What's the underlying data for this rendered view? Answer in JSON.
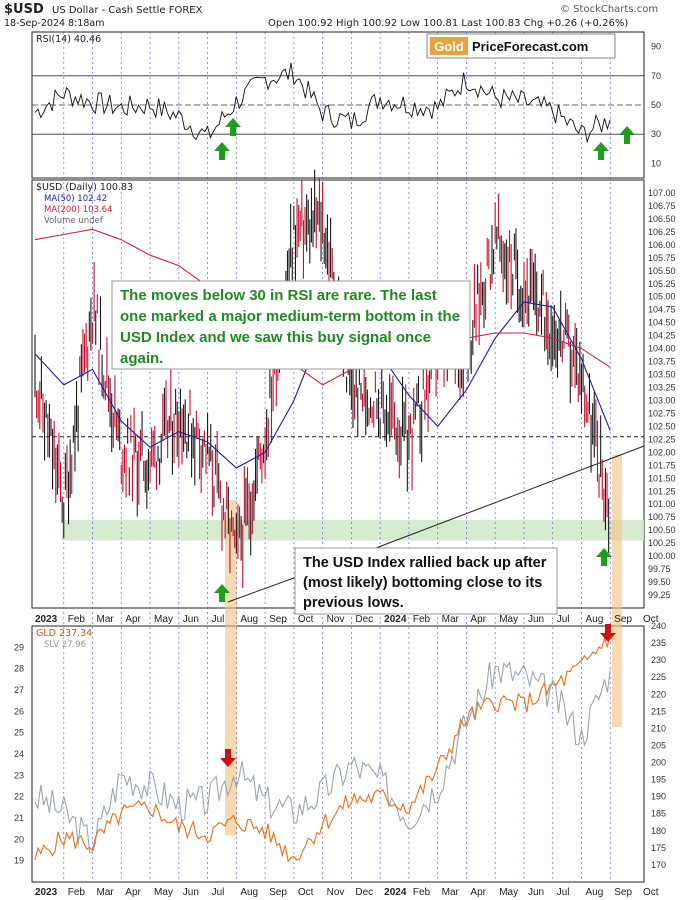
{
  "header": {
    "title": "$USD",
    "subtitle": "US Dollar - Cash Settle  FOREX",
    "date": "18-Sep-2024 8:18am",
    "ohlc": "Open 100.92  High 100.92  Low 100.81  Last 100.83  Chg +0.26 (+0.26%)",
    "credit": "© StockCharts.com"
  },
  "logo": {
    "gold": "Gold",
    "rest": "PriceForecast.com"
  },
  "colors": {
    "price_bar": "#1a1a1a",
    "price_down": "#c8102e",
    "ma50": "#1f1fa0",
    "ma200": "#cc2244",
    "gld": "#e8701a",
    "slv": "#9aa6b2",
    "support_zone": "#cfe6c8",
    "highlight": "#f4c27f",
    "grid_dash": "#3a3aff",
    "arrow_up": "#1e9e1e",
    "arrow_down": "#cc1111",
    "annotation_green": "#1e8c1e"
  },
  "annotations": {
    "rsi_note": "The moves below 30 in RSI are rare. The last one marked a major medium-term bottom in the USD Index and we saw this buy signal once again.",
    "usd_note": "The USD Index rallied back up after (most likely) bottoming close to its previous lows."
  },
  "chart_data": [
    {
      "type": "line",
      "panel": "RSI",
      "legend": "RSI(14) 40.46",
      "ylim": [
        0,
        100
      ],
      "y_ticks": [
        10,
        30,
        50,
        70,
        90
      ],
      "reference_lines": [
        30,
        50,
        70
      ],
      "x_ticks": [
        "2023",
        "Feb",
        "Mar",
        "Apr",
        "May",
        "Jun",
        "Jul",
        "Aug",
        "Sep",
        "Oct",
        "Nov",
        "Dec",
        "2024",
        "Feb",
        "Mar",
        "Apr",
        "May",
        "Jun",
        "Jul",
        "Aug",
        "Sep",
        "Oct"
      ],
      "x": [
        "2023-01",
        "2023-02",
        "2023-03",
        "2023-04",
        "2023-05",
        "2023-06",
        "2023-07",
        "2023-08",
        "2023-09",
        "2023-10",
        "2023-11",
        "2023-12",
        "2024-01",
        "2024-02",
        "2024-03",
        "2024-04",
        "2024-05",
        "2024-06",
        "2024-07",
        "2024-08",
        "2024-09"
      ],
      "series": [
        {
          "name": "RSI(14) 40.46",
          "values": [
            45,
            58,
            52,
            48,
            50,
            42,
            28,
            52,
            68,
            72,
            45,
            38,
            55,
            50,
            48,
            68,
            55,
            52,
            46,
            30,
            40
          ]
        }
      ]
    },
    {
      "type": "line",
      "panel": "USD",
      "legend": [
        "$USD (Daily) 100.83",
        "MA(50) 102.42",
        "MA(200) 103.64",
        "Volume undef"
      ],
      "ylim": [
        99.0,
        107.25
      ],
      "y_ticks": [
        "107.00",
        "106.75",
        "106.50",
        "106.25",
        "106.00",
        "105.75",
        "105.50",
        "105.25",
        "105.00",
        "104.75",
        "104.50",
        "104.25",
        "104.00",
        "103.75",
        "103.50",
        "103.25",
        "103.00",
        "102.75",
        "102.50",
        "102.25",
        "102.00",
        "101.75",
        "101.50",
        "101.25",
        "101.00",
        "100.75",
        "100.50",
        "100.25",
        "100.00",
        "99.75",
        "99.50",
        "99.25"
      ],
      "x_ticks": [
        "2023",
        "Feb",
        "Mar",
        "Apr",
        "May",
        "Jun",
        "Jul",
        "Aug",
        "Sep",
        "Oct",
        "Nov",
        "Dec",
        "2024",
        "Feb",
        "Mar",
        "Apr",
        "May",
        "Jun",
        "Jul",
        "Aug",
        "Sep",
        "Oct"
      ],
      "x": [
        "2023-01",
        "2023-02",
        "2023-03",
        "2023-04",
        "2023-05",
        "2023-06",
        "2023-07",
        "2023-08",
        "2023-09",
        "2023-10",
        "2023-11",
        "2023-12",
        "2024-01",
        "2024-02",
        "2024-03",
        "2024-04",
        "2024-05",
        "2024-06",
        "2024-07",
        "2024-08",
        "2024-09"
      ],
      "series": [
        {
          "name": "$USD (Daily) 100.83",
          "values": [
            103.5,
            101.0,
            104.8,
            102.0,
            101.8,
            102.8,
            102.0,
            100.0,
            102.3,
            106.2,
            106.5,
            103.2,
            103.0,
            102.2,
            103.8,
            104.0,
            106.1,
            105.2,
            104.5,
            103.5,
            100.8
          ]
        },
        {
          "name": "MA(50) 102.42",
          "values": [
            103.9,
            103.3,
            103.6,
            102.6,
            102.1,
            102.4,
            102.2,
            101.7,
            102.0,
            103.0,
            104.4,
            104.7,
            103.9,
            103.1,
            102.5,
            103.2,
            104.2,
            104.9,
            104.8,
            103.8,
            102.42
          ]
        },
        {
          "name": "MA(200) 103.64",
          "values": [
            106.1,
            106.2,
            106.3,
            106.1,
            105.8,
            105.6,
            105.2,
            104.7,
            104.2,
            103.7,
            103.3,
            103.6,
            103.9,
            104.0,
            104.1,
            104.2,
            104.3,
            104.3,
            104.2,
            104.0,
            103.64
          ]
        }
      ],
      "support_zone": [
        100.3,
        100.7
      ],
      "dashed_level": 102.3
    },
    {
      "type": "line",
      "panel": "GLD/SLV",
      "legend": [
        "GLD 237.34",
        "SLV 27.96"
      ],
      "ylim_left": [
        18,
        30
      ],
      "ylim_right": [
        165,
        240
      ],
      "y_ticks_left": [
        19,
        20,
        21,
        22,
        23,
        24,
        25,
        26,
        27,
        28,
        29
      ],
      "y_ticks_right": [
        170,
        175,
        180,
        185,
        190,
        195,
        200,
        205,
        210,
        215,
        220,
        225,
        230,
        235,
        240
      ],
      "x_ticks": [
        "2023",
        "Feb",
        "Mar",
        "Apr",
        "May",
        "Jun",
        "Jul",
        "Aug",
        "Sep",
        "Oct",
        "Nov",
        "Dec",
        "2024",
        "Feb",
        "Mar",
        "Apr",
        "May",
        "Jun",
        "Jul",
        "Aug",
        "Sep",
        "Oct"
      ],
      "x": [
        "2023-01",
        "2023-02",
        "2023-03",
        "2023-04",
        "2023-05",
        "2023-06",
        "2023-07",
        "2023-08",
        "2023-09",
        "2023-10",
        "2023-11",
        "2023-12",
        "2024-01",
        "2024-02",
        "2024-03",
        "2024-04",
        "2024-05",
        "2024-06",
        "2024-07",
        "2024-08",
        "2024-09"
      ],
      "series": [
        {
          "name": "GLD 237.34",
          "values": [
            172,
            178,
            176,
            185,
            187,
            181,
            179,
            183,
            180,
            172,
            182,
            189,
            190,
            187,
            198,
            213,
            218,
            217,
            222,
            228,
            237.34
          ]
        },
        {
          "name": "SLV 27.96",
          "values": [
            22.0,
            21.3,
            19.8,
            23.0,
            22.5,
            21.6,
            21.8,
            23.2,
            21.8,
            21.3,
            22.2,
            23.5,
            22.8,
            21.0,
            22.5,
            25.5,
            28.0,
            27.6,
            26.8,
            24.8,
            27.96
          ]
        }
      ]
    }
  ]
}
